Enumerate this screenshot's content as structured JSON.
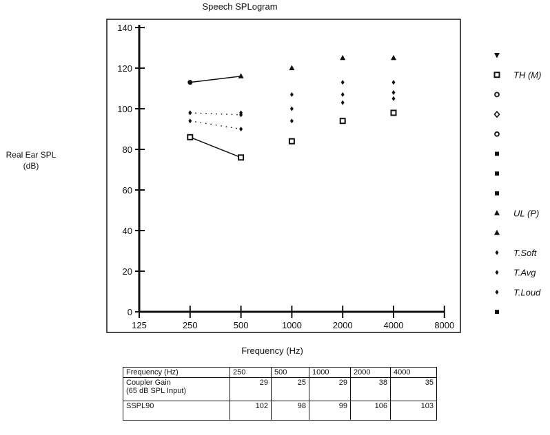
{
  "chart_data": {
    "type": "scatter",
    "title": "Speech SPLogram",
    "xlabel": "Frequency (Hz)",
    "ylabel": [
      "Real Ear SPL",
      "(dB)"
    ],
    "x_scale": "log2",
    "x_ticks": [
      "125",
      "250",
      "500",
      "1000",
      "2000",
      "4000",
      "8000"
    ],
    "y_ticks": [
      "0",
      "20",
      "40",
      "60",
      "80",
      "100",
      "120",
      "140"
    ],
    "ylim": [
      0,
      140
    ],
    "grid": false,
    "legend_placement": "right",
    "series": [
      {
        "name": "TH (M)",
        "marker": "square-open",
        "x": [
          250,
          500,
          1000,
          2000,
          4000
        ],
        "y": [
          86,
          76,
          84,
          94,
          98
        ],
        "line": "solid-250-500"
      },
      {
        "name": "UL (P)",
        "marker": "triangle",
        "x": [
          250,
          500,
          1000,
          2000,
          4000
        ],
        "y": [
          113,
          116,
          120,
          125,
          125
        ],
        "line": "solid-250-500"
      },
      {
        "name": "T.Soft",
        "marker": "diamond",
        "x": [
          250,
          500,
          1000,
          2000,
          4000
        ],
        "y": [
          94,
          90,
          94,
          103,
          105
        ],
        "line": "dotted-250-500"
      },
      {
        "name": "T.Avg",
        "marker": "diamond",
        "x": [
          250,
          500,
          1000,
          2000,
          4000
        ],
        "y": [
          98,
          97,
          100,
          107,
          108
        ],
        "line": "dotted-250-500"
      },
      {
        "name": "T.Loud",
        "marker": "diamond",
        "x": [
          250,
          500,
          1000,
          2000,
          4000
        ],
        "y": [
          98,
          98,
          107,
          113,
          113
        ],
        "line": "none"
      }
    ],
    "legend": [
      {
        "marker": "triangle-down",
        "label": ""
      },
      {
        "marker": "square-open",
        "label": "TH (M)"
      },
      {
        "marker": "circle-open",
        "label": ""
      },
      {
        "marker": "diamond-open",
        "label": ""
      },
      {
        "marker": "circle-open",
        "label": ""
      },
      {
        "marker": "square",
        "label": ""
      },
      {
        "marker": "square",
        "label": ""
      },
      {
        "marker": "square",
        "label": ""
      },
      {
        "marker": "triangle",
        "label": "UL (P)"
      },
      {
        "marker": "triangle",
        "label": ""
      },
      {
        "marker": "diamond",
        "label": "T.Soft"
      },
      {
        "marker": "diamond",
        "label": "T.Avg"
      },
      {
        "marker": "diamond",
        "label": "T.Loud"
      },
      {
        "marker": "square",
        "label": ""
      }
    ]
  },
  "table": {
    "header": [
      "Frequency (Hz)",
      "250",
      "500",
      "1000",
      "2000",
      "4000"
    ],
    "rows": [
      {
        "label": "Coupler Gain",
        "sublabel": "(65 dB SPL Input)",
        "values": [
          "29",
          "25",
          "29",
          "38",
          "35"
        ]
      },
      {
        "label": "SSPL90",
        "values": [
          "102",
          "98",
          "99",
          "106",
          "103"
        ]
      }
    ]
  }
}
